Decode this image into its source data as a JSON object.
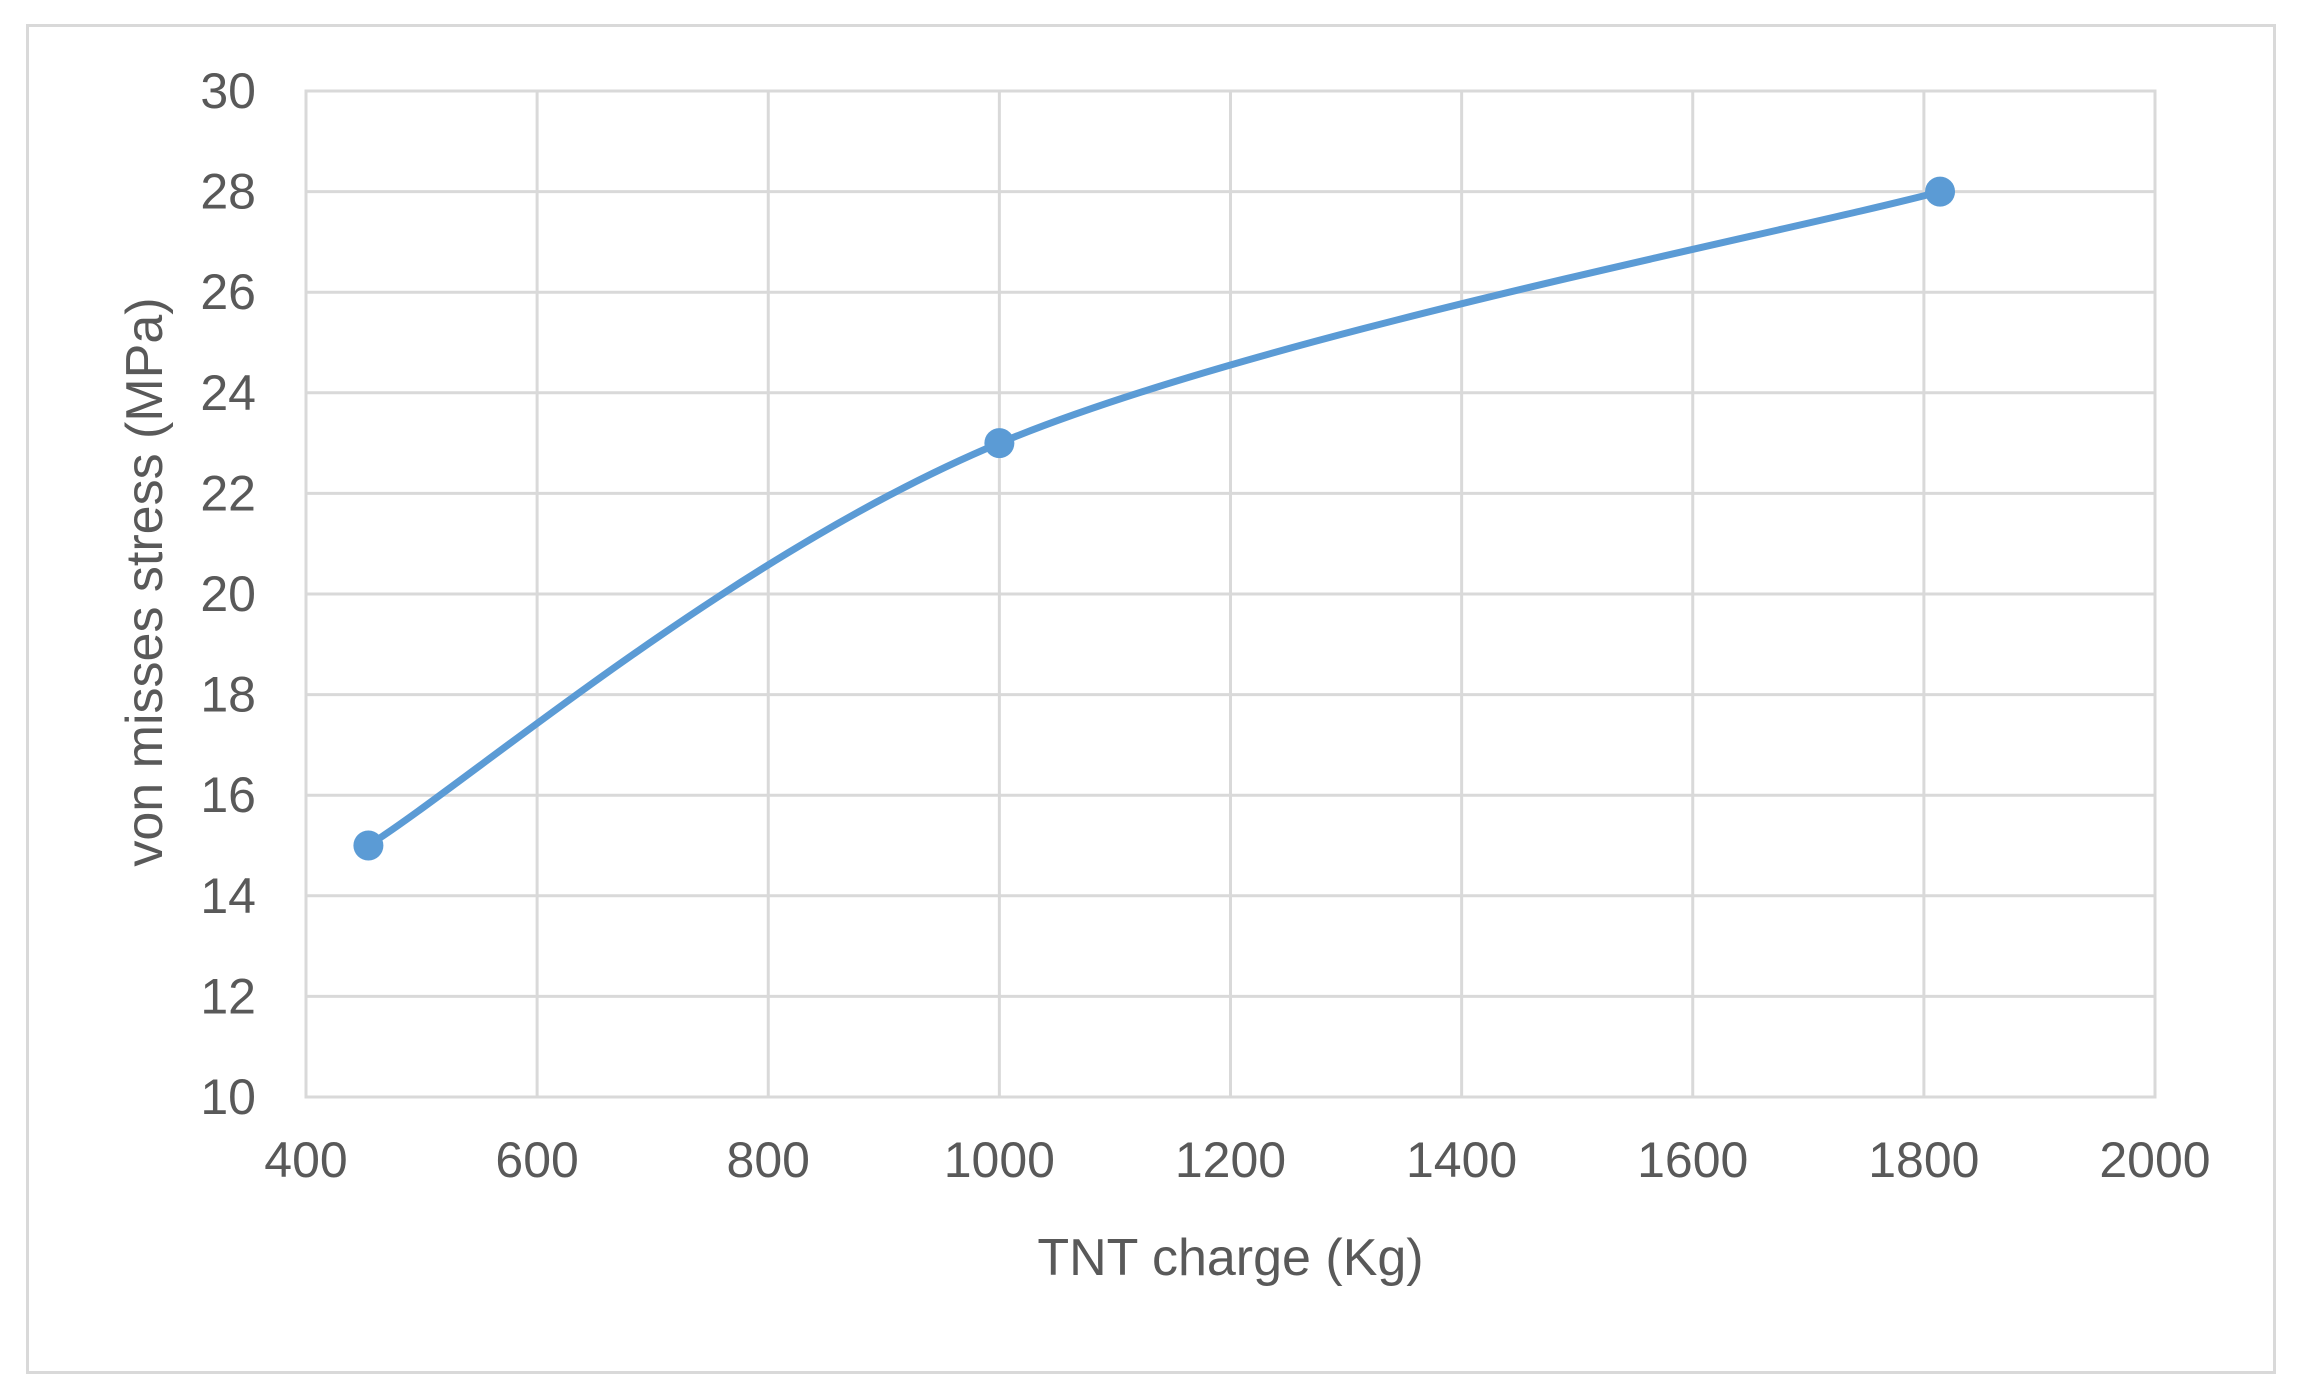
{
  "chart_data": {
    "type": "line",
    "title": "",
    "xlabel": "TNT  charge (Kg)",
    "ylabel": "von misses stress (MPa)",
    "xlim": [
      400,
      2000
    ],
    "ylim": [
      10,
      30
    ],
    "x_ticks": [
      "400",
      "600",
      "800",
      "1000",
      "1200",
      "1400",
      "1600",
      "1800",
      "2000"
    ],
    "y_ticks": [
      "10",
      "12",
      "14",
      "16",
      "18",
      "20",
      "22",
      "24",
      "26",
      "28",
      "30"
    ],
    "grid": true,
    "smoothed": true,
    "series": [
      {
        "x": [
          454,
          1000,
          1814
        ],
        "y": [
          15,
          23,
          28
        ],
        "color": "#5b9bd5"
      }
    ]
  }
}
